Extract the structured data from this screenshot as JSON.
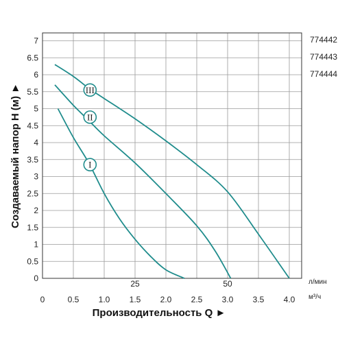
{
  "chart_data": {
    "type": "line",
    "xlabel": "Производительность Q ►",
    "ylabel": "Создаваемый напор Н (м) ►",
    "x_unit": "м³/ч",
    "x2_unit": "л/мин",
    "xlim": [
      0,
      4.2
    ],
    "ylim": [
      0,
      7.5
    ],
    "x_ticks": [
      "0",
      "0.5",
      "1.0",
      "1.5",
      "2.0",
      "2.5",
      "3.0",
      "3.5",
      "4.0"
    ],
    "y_ticks": [
      "0",
      "0.5",
      "1",
      "1.5",
      "2",
      "2.5",
      "3",
      "3.5",
      "4",
      "4.5",
      "5",
      "5.5",
      "6",
      "6.5",
      "7"
    ],
    "x2_ticks": [
      {
        "label": "25",
        "value": 1.5
      },
      {
        "label": "50",
        "value": 3.0
      }
    ],
    "models": [
      "774442",
      "774443",
      "774444"
    ],
    "grid": true,
    "curve_color": "#1f8c8c",
    "series": [
      {
        "name": "I",
        "x": [
          0.25,
          0.5,
          0.75,
          1.0,
          1.25,
          1.5,
          1.75,
          2.0,
          2.3
        ],
        "y": [
          5.0,
          4.15,
          3.4,
          2.5,
          1.75,
          1.15,
          0.65,
          0.25,
          0.0
        ]
      },
      {
        "name": "II",
        "x": [
          0.2,
          0.5,
          0.75,
          1.0,
          1.5,
          2.0,
          2.5,
          2.8,
          3.05
        ],
        "y": [
          5.7,
          5.1,
          4.65,
          4.2,
          3.4,
          2.5,
          1.55,
          0.8,
          0.0
        ]
      },
      {
        "name": "III",
        "x": [
          0.2,
          0.5,
          0.75,
          1.0,
          1.5,
          2.0,
          2.5,
          3.0,
          3.5,
          4.0
        ],
        "y": [
          6.3,
          5.95,
          5.6,
          5.3,
          4.7,
          4.05,
          3.35,
          2.55,
          1.3,
          0.0
        ]
      }
    ],
    "labels": [
      {
        "text": "I",
        "x": 0.77,
        "y": 3.35
      },
      {
        "text": "II",
        "x": 0.77,
        "y": 4.75
      },
      {
        "text": "III",
        "x": 0.77,
        "y": 5.55
      }
    ]
  }
}
